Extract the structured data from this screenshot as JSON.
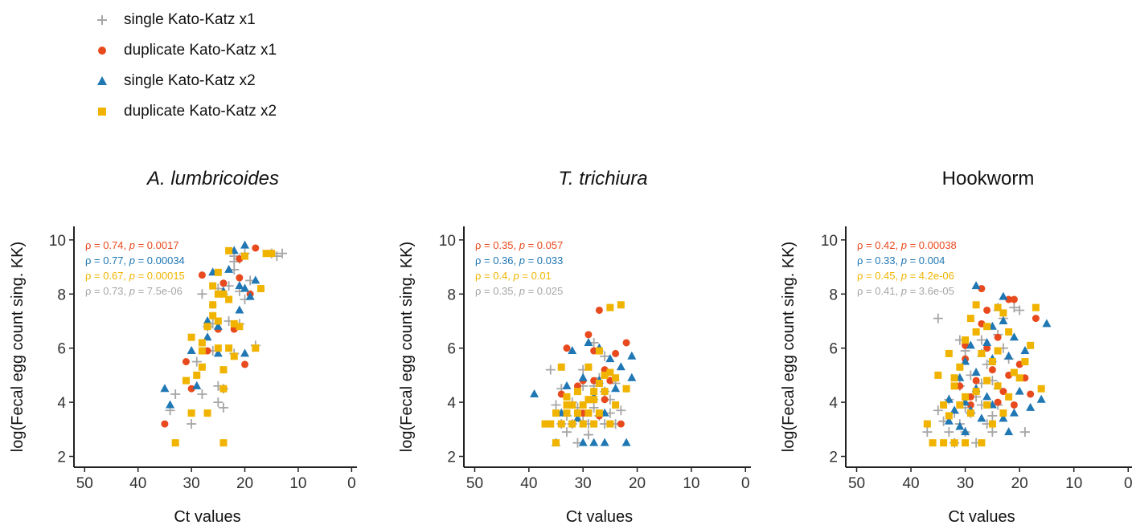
{
  "legend": {
    "items": [
      {
        "label": "single Kato-Katz  x1",
        "color": "#a6a6a6",
        "shape": "plus"
      },
      {
        "label": "duplicate Kato-Katz  x1",
        "color": "#e8491d",
        "shape": "circle"
      },
      {
        "label": "single Kato-Katz  x2",
        "color": "#1f77b4",
        "shape": "triangle"
      },
      {
        "label": "duplicate Kato-Katz  x2",
        "color": "#f0b400",
        "shape": "square"
      }
    ]
  },
  "chart_data": [
    {
      "type": "scatter",
      "title": "A. lumbricoides",
      "title_italic": true,
      "xlabel": "Ct values",
      "ylabel": "log(Fecal egg count sing. KK)",
      "x_reversed": true,
      "xlim": [
        52,
        -1
      ],
      "ylim": [
        1.6,
        10.5
      ],
      "xticks": [
        50,
        40,
        30,
        20,
        10,
        0
      ],
      "yticks": [
        2,
        4,
        6,
        8,
        10
      ],
      "stats": [
        {
          "rho": "0.74",
          "p": "0.0017",
          "color": "#e8491d"
        },
        {
          "rho": "0.77",
          "p": "0.00034",
          "color": "#1f77b4"
        },
        {
          "rho": "0.67",
          "p": "0.00015",
          "color": "#f0b400"
        },
        {
          "rho": "0.73",
          "p": "7.5e-06",
          "color": "#a6a6a6"
        }
      ],
      "series": [
        {
          "name": "single Kato-Katz  x1",
          "shape": "plus",
          "color": "#a6a6a6",
          "x": [
            34,
            33,
            30,
            29,
            28,
            27,
            26,
            25,
            25,
            24,
            24,
            23,
            23,
            22,
            22,
            22,
            21,
            21,
            20,
            19,
            18,
            15,
            14,
            13,
            25,
            26,
            22,
            21,
            20,
            28
          ],
          "y": [
            3.7,
            4.3,
            3.2,
            5.5,
            4.3,
            6.8,
            5.9,
            4.0,
            4.6,
            4.5,
            3.8,
            7.0,
            8.3,
            9.4,
            5.8,
            8.9,
            9.3,
            6.9,
            7.8,
            8.5,
            6.1,
            9.5,
            9.4,
            9.5,
            8.2,
            6.9,
            9.2,
            8.1,
            9.5,
            8.0
          ]
        },
        {
          "name": "duplicate Kato-Katz  x1",
          "shape": "circle",
          "color": "#e8491d",
          "x": [
            35,
            31,
            30,
            28,
            26,
            25,
            24,
            22,
            21,
            20,
            19,
            18,
            21,
            27
          ],
          "y": [
            3.2,
            5.5,
            4.5,
            8.7,
            7.6,
            6.7,
            8.4,
            6.7,
            9.3,
            5.4,
            8.0,
            9.7,
            8.6,
            5.9
          ]
        },
        {
          "name": "single Kato-Katz  x2",
          "shape": "triangle",
          "color": "#1f77b4",
          "x": [
            35,
            34,
            30,
            29,
            27,
            26,
            25,
            24,
            23,
            22,
            21,
            21,
            20,
            20,
            20,
            19,
            18,
            25,
            27
          ],
          "y": [
            4.5,
            3.9,
            5.9,
            4.6,
            7.0,
            8.8,
            5.8,
            8.1,
            8.9,
            9.6,
            8.3,
            7.4,
            5.8,
            9.8,
            8.2,
            7.9,
            8.5,
            6.8,
            6.4
          ]
        },
        {
          "name": "duplicate Kato-Katz  x2",
          "shape": "square",
          "color": "#f0b400",
          "x": [
            33,
            31,
            30,
            29,
            28,
            28,
            27,
            27,
            26,
            26,
            25,
            25,
            25,
            24,
            24,
            24,
            23,
            23,
            22,
            22,
            21,
            20,
            18,
            17,
            16,
            15,
            25,
            26,
            28,
            23,
            30,
            24
          ],
          "y": [
            2.5,
            4.8,
            3.6,
            5.0,
            5.3,
            5.9,
            6.8,
            3.6,
            7.6,
            8.3,
            8.0,
            6.0,
            8.8,
            2.5,
            4.5,
            8.0,
            9.6,
            6.0,
            6.9,
            5.7,
            6.8,
            9.4,
            6.0,
            8.2,
            9.5,
            9.5,
            7.0,
            7.2,
            6.2,
            7.8,
            6.4,
            5.2
          ]
        }
      ]
    },
    {
      "type": "scatter",
      "title": "T. trichiura",
      "title_italic": true,
      "xlabel": "Ct values",
      "ylabel": "log(Fecal egg count sing. KK)",
      "x_reversed": true,
      "xlim": [
        52,
        -1
      ],
      "ylim": [
        1.6,
        10.5
      ],
      "xticks": [
        50,
        40,
        30,
        20,
        10,
        0
      ],
      "yticks": [
        2,
        4,
        6,
        8,
        10
      ],
      "stats": [
        {
          "rho": "0.35",
          "p": "0.057",
          "color": "#e8491d"
        },
        {
          "rho": "0.36",
          "p": "0.033",
          "color": "#1f77b4"
        },
        {
          "rho": "0.4",
          "p": "0.01",
          "color": "#f0b400"
        },
        {
          "rho": "0.35",
          "p": "0.025",
          "color": "#a6a6a6"
        }
      ],
      "series": [
        {
          "name": "single Kato-Katz  x1",
          "shape": "plus",
          "color": "#a6a6a6",
          "x": [
            36,
            35,
            34,
            33,
            33,
            32,
            32,
            31,
            31,
            30,
            30,
            29,
            29,
            28,
            28,
            27,
            27,
            26,
            26,
            25,
            25,
            24,
            24,
            23,
            34,
            30,
            28,
            26
          ],
          "y": [
            5.2,
            3.9,
            3.2,
            2.9,
            3.5,
            3.2,
            4.0,
            2.5,
            3.8,
            3.3,
            4.6,
            3.2,
            2.8,
            3.8,
            4.6,
            3.5,
            4.9,
            3.2,
            5.7,
            3.6,
            4.1,
            4.7,
            3.2,
            3.7,
            4.5,
            5.2,
            6.2,
            4.4
          ]
        },
        {
          "name": "duplicate Kato-Katz  x1",
          "shape": "circle",
          "color": "#e8491d",
          "x": [
            34,
            33,
            32,
            31,
            30,
            29,
            29,
            28,
            27,
            27,
            26,
            25,
            24,
            23,
            22,
            30,
            28,
            26
          ],
          "y": [
            4.3,
            6.0,
            3.9,
            4.6,
            4.8,
            6.5,
            4.1,
            5.9,
            7.4,
            3.5,
            4.1,
            4.8,
            5.8,
            3.2,
            6.2,
            3.6,
            4.8,
            5.2
          ]
        },
        {
          "name": "single Kato-Katz  x2",
          "shape": "triangle",
          "color": "#1f77b4",
          "x": [
            39,
            35,
            34,
            33,
            32,
            31,
            30,
            30,
            29,
            28,
            28,
            27,
            27,
            26,
            26,
            25,
            24,
            23,
            22,
            21,
            21
          ],
          "y": [
            4.3,
            2.5,
            3.6,
            4.6,
            5.9,
            3.4,
            4.9,
            2.5,
            6.2,
            4.2,
            2.5,
            6.0,
            4.8,
            3.6,
            2.5,
            5.6,
            4.5,
            5.3,
            2.5,
            5.7,
            4.9
          ]
        },
        {
          "name": "duplicate Kato-Katz  x2",
          "shape": "square",
          "color": "#f0b400",
          "x": [
            37,
            36,
            35,
            35,
            34,
            34,
            33,
            33,
            32,
            32,
            31,
            31,
            30,
            30,
            29,
            29,
            28,
            28,
            27,
            27,
            26,
            26,
            25,
            25,
            24,
            24,
            23,
            22,
            31,
            29,
            27,
            25,
            33,
            28
          ],
          "y": [
            3.2,
            3.2,
            3.6,
            2.5,
            3.2,
            5.3,
            3.6,
            4.2,
            3.2,
            3.9,
            3.6,
            4.4,
            3.2,
            3.9,
            3.6,
            5.3,
            4.1,
            3.2,
            4.7,
            3.6,
            5.0,
            4.4,
            7.5,
            3.2,
            3.9,
            4.9,
            7.6,
            4.5,
            3.6,
            4.1,
            5.9,
            5.1,
            3.9,
            4.4
          ]
        }
      ]
    },
    {
      "type": "scatter",
      "title": "Hookworm",
      "title_italic": false,
      "xlabel": "Ct values",
      "ylabel": "log(Fecal egg count sing. KK)",
      "x_reversed": true,
      "xlim": [
        52,
        -1
      ],
      "ylim": [
        1.6,
        10.5
      ],
      "xticks": [
        50,
        40,
        30,
        20,
        10,
        0
      ],
      "yticks": [
        2,
        4,
        6,
        8,
        10
      ],
      "stats": [
        {
          "rho": "0.42",
          "p": "0.00038",
          "color": "#e8491d"
        },
        {
          "rho": "0.33",
          "p": "0.004",
          "color": "#1f77b4"
        },
        {
          "rho": "0.45",
          "p": "4.2e-06",
          "color": "#f0b400"
        },
        {
          "rho": "0.41",
          "p": "3.6e-05",
          "color": "#a6a6a6"
        }
      ],
      "series": [
        {
          "name": "single Kato-Katz  x1",
          "shape": "plus",
          "color": "#a6a6a6",
          "x": [
            37,
            35,
            34,
            33,
            33,
            32,
            32,
            31,
            31,
            30,
            30,
            29,
            29,
            28,
            28,
            27,
            27,
            26,
            26,
            25,
            25,
            24,
            24,
            23,
            22,
            21,
            20,
            19,
            35,
            30,
            27,
            25,
            23,
            31
          ],
          "y": [
            2.9,
            7.1,
            3.3,
            2.9,
            4.1,
            3.6,
            2.5,
            3.2,
            4.6,
            5.9,
            2.9,
            3.6,
            5.0,
            4.2,
            2.5,
            3.9,
            6.3,
            3.2,
            5.4,
            4.8,
            2.9,
            6.5,
            3.9,
            7.1,
            5.6,
            7.5,
            7.4,
            2.9,
            3.7,
            3.8,
            4.7,
            3.5,
            6.0,
            6.3
          ]
        },
        {
          "name": "duplicate Kato-Katz  x1",
          "shape": "circle",
          "color": "#e8491d",
          "x": [
            31,
            30,
            30,
            29,
            28,
            27,
            27,
            26,
            25,
            24,
            23,
            22,
            21,
            21,
            20,
            19,
            18,
            17,
            26,
            24,
            29,
            22
          ],
          "y": [
            4.6,
            5.6,
            6.1,
            4.2,
            4.8,
            8.2,
            6.9,
            7.4,
            5.2,
            6.4,
            4.4,
            7.8,
            3.9,
            7.8,
            5.4,
            4.9,
            4.3,
            7.1,
            6.0,
            4.0,
            3.9,
            5.0
          ]
        },
        {
          "name": "single Kato-Katz  x2",
          "shape": "triangle",
          "color": "#1f77b4",
          "x": [
            33,
            33,
            32,
            31,
            31,
            30,
            30,
            29,
            29,
            28,
            28,
            27,
            27,
            26,
            26,
            25,
            25,
            24,
            24,
            23,
            23,
            22,
            22,
            21,
            21,
            20,
            19,
            18,
            16,
            15,
            28,
            25,
            23,
            30
          ],
          "y": [
            3.3,
            4.1,
            3.7,
            4.9,
            3.1,
            5.5,
            2.9,
            6.1,
            3.7,
            8.3,
            4.5,
            5.8,
            3.4,
            6.2,
            4.2,
            5.6,
            3.9,
            7.5,
            4.6,
            7.9,
            3.4,
            5.7,
            2.9,
            6.4,
            3.6,
            4.4,
            5.9,
            3.8,
            4.1,
            6.9,
            5.1,
            6.8,
            7.0,
            4.0
          ]
        },
        {
          "name": "duplicate Kato-Katz  x2",
          "shape": "square",
          "color": "#f0b400",
          "x": [
            37,
            36,
            35,
            34,
            34,
            33,
            33,
            32,
            32,
            31,
            31,
            30,
            30,
            29,
            29,
            28,
            28,
            27,
            27,
            26,
            26,
            25,
            25,
            24,
            24,
            23,
            23,
            22,
            22,
            21,
            20,
            19,
            18,
            17,
            16,
            28,
            26,
            24,
            30,
            32
          ],
          "y": [
            3.2,
            2.5,
            5.0,
            2.5,
            3.9,
            5.8,
            3.5,
            4.6,
            2.5,
            5.3,
            3.9,
            6.3,
            2.5,
            7.1,
            3.6,
            7.6,
            4.4,
            5.8,
            2.5,
            6.8,
            3.9,
            5.5,
            3.2,
            7.5,
            4.6,
            7.3,
            3.6,
            6.6,
            4.2,
            5.1,
            4.9,
            5.5,
            6.1,
            7.5,
            4.5,
            6.6,
            4.8,
            5.9,
            4.2,
            4.9
          ]
        }
      ]
    }
  ]
}
